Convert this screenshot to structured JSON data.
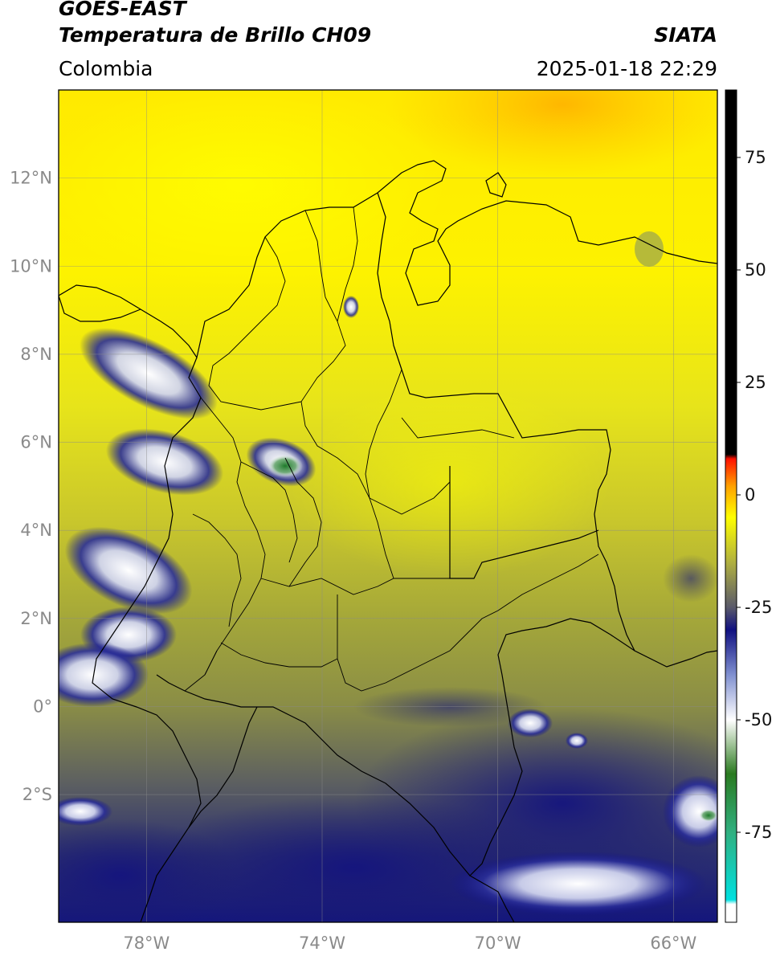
{
  "header": {
    "satellite": "GOES-EAST",
    "product": "Temperatura de Brillo CH09",
    "brand": "SIATA",
    "region": "Colombia",
    "datetime": "2025-01-18 22:29"
  },
  "map": {
    "lon_range": [
      -80,
      -65
    ],
    "lat_range": [
      -4.9,
      14
    ],
    "lat_ticks": [
      {
        "value": 12,
        "label": "12°N"
      },
      {
        "value": 10,
        "label": "10°N"
      },
      {
        "value": 8,
        "label": "8°N"
      },
      {
        "value": 6,
        "label": "6°N"
      },
      {
        "value": 4,
        "label": "4°N"
      },
      {
        "value": 2,
        "label": "2°N"
      },
      {
        "value": 0,
        "label": "0°"
      },
      {
        "value": -2,
        "label": "2°S"
      }
    ],
    "lon_ticks": [
      {
        "value": -78,
        "label": "78°W"
      },
      {
        "value": -74,
        "label": "74°W"
      },
      {
        "value": -70,
        "label": "70°W"
      },
      {
        "value": -66,
        "label": "66°W"
      }
    ],
    "gridlines": true
  },
  "colorbar": {
    "range": [
      -95,
      90
    ],
    "ticks": [
      {
        "value": 75,
        "label": "75"
      },
      {
        "value": 50,
        "label": "50"
      },
      {
        "value": 25,
        "label": "25"
      },
      {
        "value": 0,
        "label": "0"
      },
      {
        "value": -25,
        "label": "-25"
      },
      {
        "value": -50,
        "label": "-50"
      },
      {
        "value": -75,
        "label": "-75"
      }
    ],
    "stops": [
      {
        "value": -95,
        "color": "#ffffff"
      },
      {
        "value": -91,
        "color": "#ffffff"
      },
      {
        "value": -90,
        "color": "#00e0e0"
      },
      {
        "value": -75,
        "color": "#30b080"
      },
      {
        "value": -62,
        "color": "#2a7a20"
      },
      {
        "value": -55,
        "color": "#a8c8a0"
      },
      {
        "value": -50,
        "color": "#ffffff"
      },
      {
        "value": -40,
        "color": "#8090d0"
      },
      {
        "value": -30,
        "color": "#101080"
      },
      {
        "value": -25,
        "color": "#5a5a6a"
      },
      {
        "value": -15,
        "color": "#b0b040"
      },
      {
        "value": -5,
        "color": "#ffff00"
      },
      {
        "value": 2,
        "color": "#ffa000"
      },
      {
        "value": 8,
        "color": "#ff1000"
      },
      {
        "value": 9,
        "color": "#000000"
      },
      {
        "value": 90,
        "color": "#000000"
      }
    ]
  }
}
